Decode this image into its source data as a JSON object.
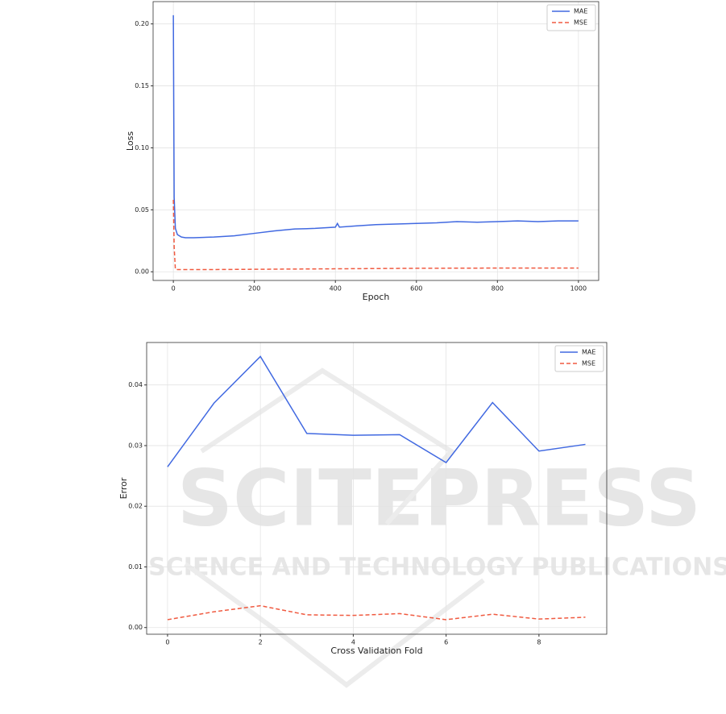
{
  "chart_data": [
    {
      "type": "line",
      "xlabel": "Epoch",
      "ylabel": "Loss",
      "xlim": [
        -50,
        1050
      ],
      "xticks": [
        0,
        200,
        400,
        600,
        800,
        1000
      ],
      "ylim": [
        -0.007,
        0.218
      ],
      "yticks": [
        {
          "value": 0,
          "label": "0.00"
        },
        {
          "value": 0.05,
          "label": "0.05"
        },
        {
          "value": 0.1,
          "label": "0.10"
        },
        {
          "value": 0.15,
          "label": "0.15"
        },
        {
          "value": 0.2,
          "label": "0.20"
        }
      ],
      "grid": true,
      "legend": "upper right",
      "series": [
        {
          "name": "MAE",
          "color": "#4169e1",
          "linestyle": "solid",
          "x": [
            0,
            2,
            5,
            10,
            20,
            30,
            50,
            100,
            150,
            200,
            250,
            300,
            350,
            400,
            405,
            410,
            450,
            500,
            550,
            600,
            650,
            700,
            750,
            800,
            850,
            900,
            950,
            1000
          ],
          "values": [
            0.207,
            0.06,
            0.035,
            0.03,
            0.028,
            0.0275,
            0.0275,
            0.028,
            0.029,
            0.031,
            0.033,
            0.0345,
            0.035,
            0.036,
            0.039,
            0.036,
            0.037,
            0.038,
            0.0385,
            0.039,
            0.0395,
            0.0405,
            0.04,
            0.0405,
            0.041,
            0.0405,
            0.041,
            0.041
          ]
        },
        {
          "name": "MSE",
          "color": "#f05a40",
          "linestyle": "dashed",
          "x": [
            0,
            2,
            5,
            10,
            100,
            200,
            400,
            600,
            800,
            1000
          ],
          "values": [
            0.058,
            0.02,
            0.002,
            0.0018,
            0.0018,
            0.002,
            0.0024,
            0.0028,
            0.003,
            0.003
          ]
        }
      ]
    },
    {
      "type": "line",
      "xlabel": "Cross Validation Fold",
      "ylabel": "Error",
      "xlim": [
        -0.45,
        9.46
      ],
      "xticks": [
        0,
        2,
        4,
        6,
        8
      ],
      "ylim": [
        -0.0011,
        0.047
      ],
      "yticks": [
        {
          "value": 0,
          "label": "0.00"
        },
        {
          "value": 0.01,
          "label": "0.01"
        },
        {
          "value": 0.02,
          "label": "0.02"
        },
        {
          "value": 0.03,
          "label": "0.03"
        },
        {
          "value": 0.04,
          "label": "0.04"
        }
      ],
      "grid": true,
      "legend": "upper right",
      "series": [
        {
          "name": "MAE",
          "color": "#4169e1",
          "linestyle": "solid",
          "x": [
            0,
            1,
            2,
            3,
            4,
            5,
            6,
            7,
            8,
            9
          ],
          "values": [
            0.0265,
            0.037,
            0.0447,
            0.032,
            0.0317,
            0.0318,
            0.0272,
            0.0371,
            0.0291,
            0.0302
          ]
        },
        {
          "name": "MSE",
          "color": "#f05a40",
          "linestyle": "dashed",
          "x": [
            0,
            1,
            2,
            3,
            4,
            5,
            6,
            7,
            8,
            9
          ],
          "values": [
            0.0013,
            0.0026,
            0.0036,
            0.0021,
            0.002,
            0.0023,
            0.0013,
            0.0022,
            0.0014,
            0.0017
          ]
        }
      ]
    }
  ],
  "watermark": {
    "title": "SCITEPRESS",
    "subtitle": "SCIENCE AND TECHNOLOGY PUBLICATIONS"
  }
}
